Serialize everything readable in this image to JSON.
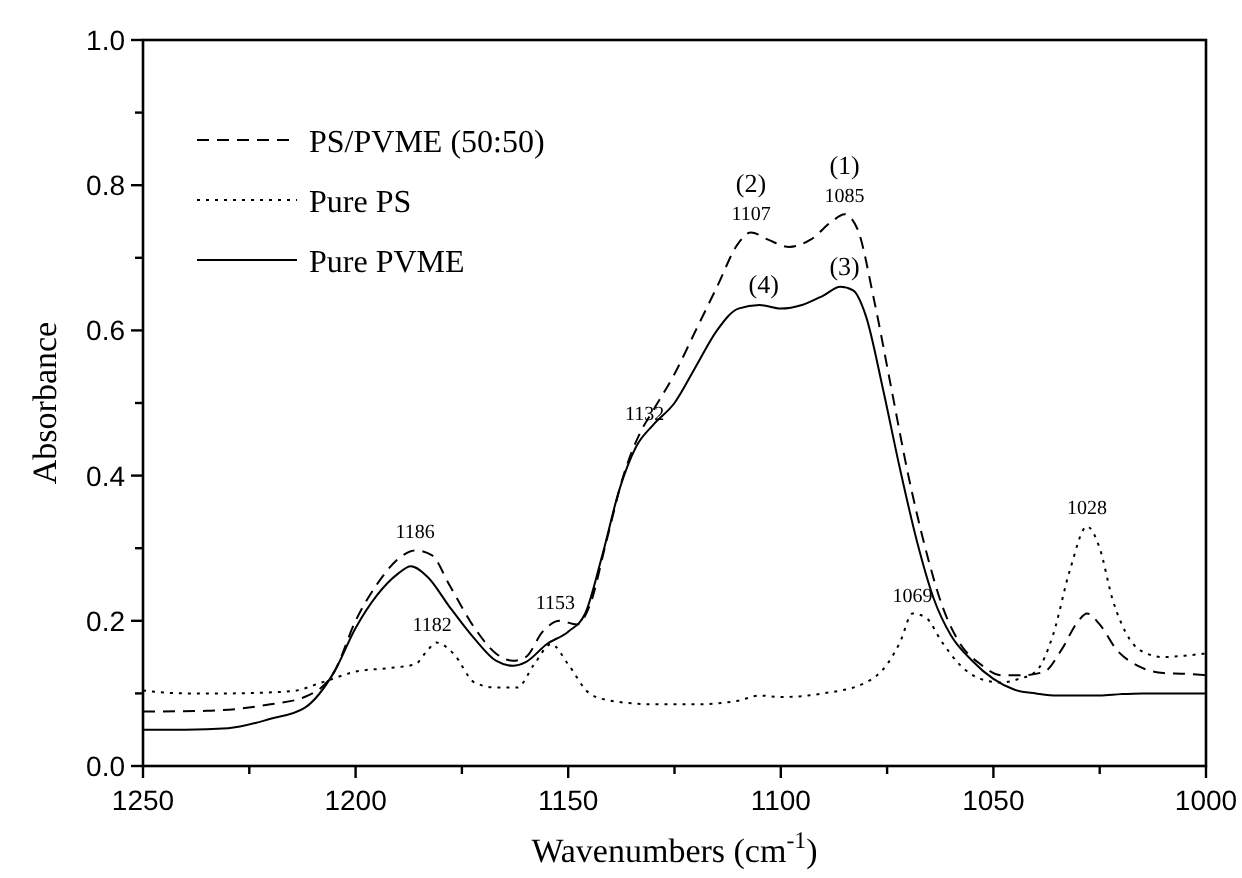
{
  "chart_data": {
    "type": "line",
    "xlabel": "Wavenumbers (cm$^{-1}$)",
    "ylabel": "Absorbance",
    "xlim": [
      1250,
      1000
    ],
    "ylim": [
      0,
      1.0
    ],
    "xticks": [
      1250,
      {
        "value": 1225,
        "label": null
      },
      1200,
      {
        "value": 1175,
        "label": null
      },
      1150,
      {
        "value": 1125,
        "label": null
      },
      1100,
      {
        "value": 1075,
        "label": null
      },
      1050,
      {
        "value": 1025,
        "label": null
      },
      1000
    ],
    "yticks": [
      {
        "value": 0,
        "label": "0.0"
      },
      {
        "value": 0.1,
        "label": null
      },
      0.2,
      {
        "value": 0.3,
        "label": null
      },
      0.4,
      {
        "value": 0.5,
        "label": null
      },
      0.6,
      {
        "value": 0.7,
        "label": null
      },
      0.8,
      {
        "value": 0.9,
        "label": null
      },
      {
        "value": 1,
        "label": "1.0"
      }
    ],
    "legend": "top left",
    "grid": false,
    "series": [
      {
        "name": "PS/PVME (50:50)",
        "color": "#000000",
        "line_style": "dashed",
        "x": [
          1250,
          1235,
          1220,
          1212,
          1205,
          1200,
          1195,
          1190,
          1186,
          1182,
          1178,
          1172,
          1167,
          1163,
          1160,
          1156,
          1152,
          1148,
          1145,
          1141,
          1137,
          1133,
          1130,
          1125,
          1120,
          1115,
          1110,
          1107,
          1103,
          1098,
          1093,
          1088,
          1085,
          1082,
          1078,
          1074,
          1070,
          1066,
          1062,
          1058,
          1053,
          1048,
          1043,
          1038,
          1034,
          1030,
          1028,
          1025,
          1021,
          1016,
          1010,
          1005,
          1000
        ],
        "values": [
          0.075,
          0.076,
          0.085,
          0.095,
          0.13,
          0.2,
          0.25,
          0.285,
          0.297,
          0.29,
          0.25,
          0.19,
          0.155,
          0.145,
          0.15,
          0.185,
          0.2,
          0.195,
          0.22,
          0.31,
          0.4,
          0.46,
          0.49,
          0.54,
          0.6,
          0.66,
          0.72,
          0.735,
          0.725,
          0.715,
          0.725,
          0.75,
          0.76,
          0.74,
          0.64,
          0.52,
          0.4,
          0.3,
          0.22,
          0.17,
          0.14,
          0.125,
          0.125,
          0.13,
          0.16,
          0.2,
          0.21,
          0.195,
          0.16,
          0.138,
          0.128,
          0.127,
          0.125
        ]
      },
      {
        "name": "Pure PS",
        "color": "#000000",
        "line_style": "dotted",
        "x": [
          1250,
          1240,
          1230,
          1215,
          1208,
          1200,
          1192,
          1186,
          1183,
          1181,
          1177,
          1172,
          1167,
          1162,
          1158,
          1154,
          1150,
          1145,
          1140,
          1130,
          1120,
          1110,
          1105,
          1100,
          1090,
          1080,
          1075,
          1072,
          1069,
          1066,
          1062,
          1058,
          1053,
          1048,
          1044,
          1040,
          1036,
          1032,
          1028,
          1025,
          1022,
          1018,
          1014,
          1010,
          1005,
          1000
        ],
        "values": [
          0.104,
          0.1,
          0.1,
          0.103,
          0.115,
          0.13,
          0.135,
          0.14,
          0.16,
          0.17,
          0.155,
          0.115,
          0.108,
          0.108,
          0.14,
          0.168,
          0.14,
          0.1,
          0.09,
          0.085,
          0.085,
          0.09,
          0.097,
          0.095,
          0.1,
          0.115,
          0.14,
          0.17,
          0.21,
          0.205,
          0.17,
          0.14,
          0.12,
          0.115,
          0.12,
          0.13,
          0.18,
          0.27,
          0.33,
          0.3,
          0.23,
          0.175,
          0.155,
          0.15,
          0.152,
          0.155
        ]
      },
      {
        "name": "Pure PVME",
        "color": "#000000",
        "line_style": "solid",
        "x": [
          1250,
          1240,
          1230,
          1220,
          1212,
          1205,
          1200,
          1195,
          1190,
          1187,
          1183,
          1178,
          1172,
          1167,
          1163,
          1160,
          1155,
          1150,
          1146,
          1142,
          1138,
          1134,
          1130,
          1125,
          1120,
          1115,
          1110,
          1105,
          1100,
          1095,
          1090,
          1086,
          1083,
          1080,
          1076,
          1072,
          1068,
          1064,
          1060,
          1055,
          1050,
          1045,
          1040,
          1035,
          1030,
          1025,
          1020,
          1015,
          1010,
          1000
        ],
        "values": [
          0.05,
          0.05,
          0.052,
          0.065,
          0.08,
          0.13,
          0.19,
          0.235,
          0.265,
          0.275,
          0.26,
          0.22,
          0.175,
          0.145,
          0.138,
          0.143,
          0.168,
          0.185,
          0.21,
          0.29,
          0.38,
          0.44,
          0.47,
          0.5,
          0.55,
          0.6,
          0.63,
          0.635,
          0.63,
          0.635,
          0.648,
          0.66,
          0.655,
          0.62,
          0.52,
          0.41,
          0.31,
          0.23,
          0.18,
          0.145,
          0.12,
          0.105,
          0.1,
          0.097,
          0.097,
          0.097,
          0.099,
          0.1,
          0.1,
          0.1
        ]
      }
    ],
    "annotations": [
      {
        "text": "1186",
        "x": 1186,
        "y": 0.297
      },
      {
        "text": "1182",
        "x": 1182,
        "y": 0.17
      },
      {
        "text": "1153",
        "x": 1153,
        "y": 0.2
      },
      {
        "text": "1132",
        "x": 1132,
        "y": 0.46
      },
      {
        "text": "1107",
        "x": 1107,
        "y": 0.735
      },
      {
        "text": "(2)",
        "x": 1107,
        "y": 0.735
      },
      {
        "text": "1085",
        "x": 1085,
        "y": 0.76
      },
      {
        "text": "(1)",
        "x": 1085,
        "y": 0.76
      },
      {
        "text": "(4)",
        "x": 1104,
        "y": 0.635
      },
      {
        "text": "(3)",
        "x": 1085,
        "y": 0.66
      },
      {
        "text": "1069",
        "x": 1069,
        "y": 0.21
      },
      {
        "text": "1028",
        "x": 1028,
        "y": 0.33
      }
    ]
  }
}
